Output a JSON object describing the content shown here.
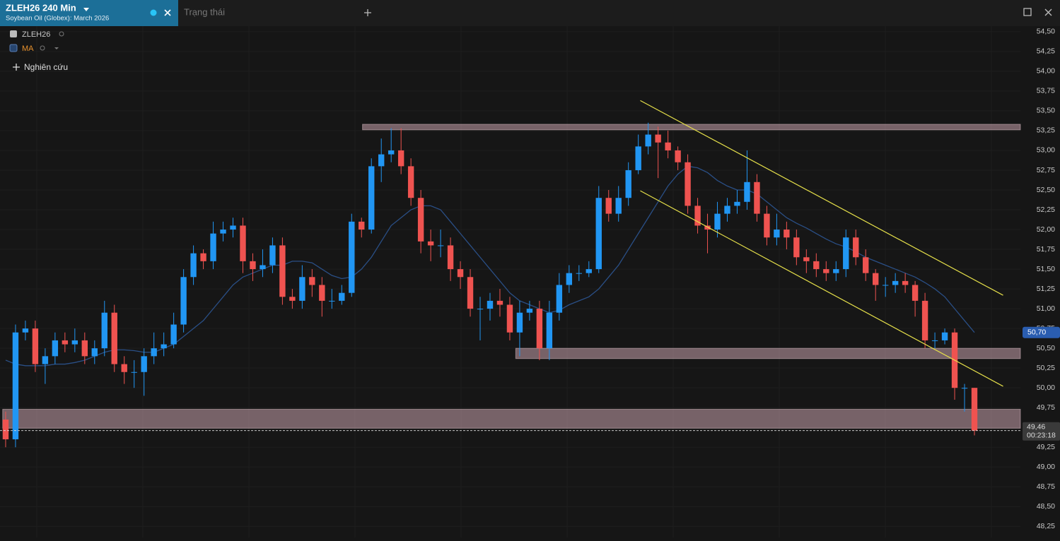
{
  "header": {
    "symbol_title": "ZLEH26 240 Min",
    "symbol_subtitle": "Soybean Oil (Globex): March 2026",
    "tab": "Trạng thái"
  },
  "legend": {
    "items": [
      "ZLEH26",
      "MA"
    ],
    "add_study": "Nghiên cứu"
  },
  "chart_data": {
    "type": "candlestick",
    "xlim": [
      -0.57,
      102.65
    ],
    "ylim": [
      48.11,
      54.57
    ],
    "yticks": [
      {
        "value": 54.5,
        "label": "54,50"
      },
      {
        "value": 54.25,
        "label": "54,25"
      },
      {
        "value": 54,
        "label": "54,00"
      },
      {
        "value": 53.75,
        "label": "53,75"
      },
      {
        "value": 53.5,
        "label": "53,50"
      },
      {
        "value": 53.25,
        "label": "53,25"
      },
      {
        "value": 53,
        "label": "53,00"
      },
      {
        "value": 52.75,
        "label": "52,75"
      },
      {
        "value": 52.5,
        "label": "52,50"
      },
      {
        "value": 52.25,
        "label": "52,25"
      },
      {
        "value": 52,
        "label": "52,00"
      },
      {
        "value": 51.75,
        "label": "51,75"
      },
      {
        "value": 51.5,
        "label": "51,50"
      },
      {
        "value": 51.25,
        "label": "51,25"
      },
      {
        "value": 51,
        "label": "51,00"
      },
      {
        "value": 50.75,
        "label": "50,75"
      },
      {
        "value": 50.5,
        "label": "50,50"
      },
      {
        "value": 50.25,
        "label": "50,25"
      },
      {
        "value": 50,
        "label": "50,00"
      },
      {
        "value": 49.75,
        "label": "49,75"
      },
      {
        "value": 49.5,
        "label": "49,50"
      },
      {
        "value": 49.25,
        "label": "49,25"
      },
      {
        "value": 49,
        "label": "49,00"
      },
      {
        "value": 48.75,
        "label": "48,75"
      },
      {
        "value": 48.5,
        "label": "48,50"
      },
      {
        "value": 48.25,
        "label": "48,25"
      }
    ],
    "grid": true,
    "up_color": "#2196f3",
    "down_color": "#ef5350",
    "open": [
      49.6,
      49.35,
      50.7,
      50.75,
      50.3,
      50.4,
      50.6,
      50.55,
      50.6,
      50.4,
      50.5,
      50.95,
      50.3,
      50.2,
      50.2,
      50.4,
      50.5,
      50.55,
      50.8,
      51.4,
      51.7,
      51.6,
      51.95,
      52,
      52.05,
      51.6,
      51.5,
      51.55,
      51.8,
      51.15,
      51.1,
      51.4,
      51.3,
      51.1,
      51.1,
      51.2,
      52.1,
      52,
      52.8,
      52.95,
      53,
      52.8,
      52.4,
      51.85,
      51.8,
      51.8,
      51.5,
      51.4,
      51,
      51,
      51.1,
      51.05,
      50.7,
      50.95,
      51,
      50.5,
      50.95,
      51.3,
      51.45,
      51.45,
      51.5,
      52.4,
      52.2,
      52.4,
      52.75,
      53.05,
      53.2,
      53.1,
      53,
      52.85,
      52.3,
      52.05,
      52,
      52.2,
      52.3,
      52.35,
      52.6,
      52.2,
      51.9,
      52,
      51.9,
      51.65,
      51.6,
      51.5,
      51.45,
      51.5,
      51.9,
      51.65,
      51.45,
      51.3,
      51.3,
      51.35,
      51.3,
      51.1,
      50.6,
      50.6,
      50.7,
      50,
      50
    ],
    "high": [
      49.7,
      50.8,
      50.85,
      50.85,
      50.5,
      50.7,
      50.7,
      50.75,
      50.7,
      50.6,
      51.1,
      51.05,
      50.4,
      50.35,
      50.5,
      50.7,
      50.7,
      50.95,
      51.5,
      51.8,
      51.75,
      52.1,
      52.1,
      52.15,
      52.15,
      51.7,
      51.75,
      51.9,
      51.9,
      51.25,
      51.55,
      51.5,
      51.4,
      51.25,
      51.3,
      52.2,
      52.15,
      52.9,
      53.15,
      53.28,
      53.28,
      52.9,
      52.5,
      52,
      52,
      51.9,
      51.6,
      51.5,
      51.15,
      51.2,
      51.25,
      51.15,
      51.1,
      51.1,
      51.1,
      51.1,
      51.45,
      51.55,
      51.55,
      51.6,
      52.55,
      52.5,
      52.55,
      52.85,
      53.2,
      53.35,
      53.3,
      53.25,
      53.05,
      52.95,
      52.4,
      52.2,
      52.35,
      52.4,
      52.5,
      53,
      52.7,
      52.3,
      52.2,
      52.1,
      52,
      51.75,
      51.7,
      51.6,
      51.6,
      52,
      52,
      51.75,
      51.5,
      51.4,
      51.45,
      51.45,
      51.35,
      51.2,
      50.7,
      50.75,
      50.75,
      50.05,
      50
    ],
    "low": [
      49.25,
      49.25,
      50.6,
      50.2,
      50.05,
      50.3,
      50.45,
      50.45,
      50.3,
      50.3,
      50.4,
      50.2,
      50.05,
      50,
      49.9,
      50.3,
      50.4,
      50.5,
      50.7,
      51.3,
      51.5,
      51.5,
      51.85,
      51.9,
      51.45,
      51.35,
      51.4,
      51.45,
      51.05,
      51,
      51,
      51.15,
      50.9,
      51,
      51.05,
      51.15,
      51.9,
      51.95,
      52.6,
      52.85,
      52.7,
      52.3,
      51.7,
      51.6,
      51.65,
      51.35,
      51.25,
      50.9,
      50.6,
      50.85,
      50.9,
      50.6,
      50.4,
      50.85,
      50.35,
      50.35,
      50.85,
      51.2,
      51.35,
      51.4,
      51.45,
      52.1,
      52.1,
      52.3,
      52.7,
      52.95,
      52.65,
      52.9,
      52.75,
      52.2,
      51.95,
      51.7,
      51.9,
      52.1,
      52.2,
      52.25,
      52.1,
      51.8,
      51.8,
      51.75,
      51.55,
      51.45,
      51.4,
      51.35,
      51.35,
      51.4,
      51.55,
      51.35,
      51.1,
      51.15,
      51.2,
      51.2,
      50.9,
      50.5,
      50.5,
      50.55,
      49.85,
      49.7,
      49.4
    ],
    "close": [
      49.35,
      50.7,
      50.75,
      50.3,
      50.4,
      50.6,
      50.55,
      50.6,
      50.4,
      50.5,
      50.95,
      50.3,
      50.2,
      50.2,
      50.4,
      50.5,
      50.55,
      50.8,
      51.4,
      51.7,
      51.6,
      51.95,
      52,
      52.05,
      51.6,
      51.5,
      51.55,
      51.8,
      51.15,
      51.1,
      51.4,
      51.3,
      51.1,
      51.1,
      51.2,
      52.1,
      52,
      52.8,
      52.95,
      53,
      52.8,
      52.4,
      51.85,
      51.8,
      51.8,
      51.5,
      51.4,
      51,
      51,
      51.1,
      51.05,
      50.7,
      50.95,
      51,
      50.5,
      50.95,
      51.3,
      51.45,
      51.45,
      51.5,
      52.4,
      52.2,
      52.4,
      52.75,
      53.05,
      53.2,
      53.1,
      53,
      52.85,
      52.3,
      52.05,
      52,
      52.2,
      52.3,
      52.35,
      52.6,
      52.2,
      51.9,
      52,
      51.9,
      51.65,
      51.6,
      51.5,
      51.45,
      51.5,
      51.9,
      51.65,
      51.45,
      51.3,
      51.3,
      51.35,
      51.3,
      51.1,
      50.6,
      50.6,
      50.7,
      50,
      50,
      49.46
    ],
    "ma": {
      "color": "#2a4f86",
      "values": [
        50.35,
        50.3,
        50.28,
        50.28,
        50.28,
        50.3,
        50.3,
        50.32,
        50.35,
        50.4,
        50.45,
        50.48,
        50.48,
        50.47,
        50.45,
        50.45,
        50.5,
        50.55,
        50.65,
        50.75,
        50.85,
        51,
        51.15,
        51.3,
        51.4,
        51.45,
        51.5,
        51.55,
        51.55,
        51.6,
        51.6,
        51.58,
        51.5,
        51.42,
        51.38,
        51.4,
        51.5,
        51.65,
        51.85,
        52.05,
        52.15,
        52.25,
        52.3,
        52.3,
        52.25,
        52.1,
        51.95,
        51.8,
        51.65,
        51.5,
        51.35,
        51.2,
        51.1,
        51.05,
        51,
        50.95,
        50.98,
        51.05,
        51.1,
        51.15,
        51.25,
        51.4,
        51.55,
        51.75,
        51.95,
        52.15,
        52.35,
        52.55,
        52.7,
        52.8,
        52.78,
        52.72,
        52.62,
        52.55,
        52.5,
        52.5,
        52.45,
        52.35,
        52.25,
        52.15,
        52.08,
        52.02,
        51.95,
        51.88,
        51.82,
        51.78,
        51.72,
        51.65,
        51.6,
        51.55,
        51.5,
        51.45,
        51.4,
        51.33,
        51.25,
        51.15,
        51,
        50.85,
        50.7
      ]
    },
    "zones": [
      {
        "y": [
          53.26,
          53.33
        ],
        "x_start": 36.1
      },
      {
        "y": [
          50.37,
          50.5
        ],
        "x_start": 51.6
      },
      {
        "y": [
          49.49,
          49.73
        ],
        "x_start": -0.3
      }
    ],
    "zone_color": "#c8a2ad",
    "trendlines": [
      {
        "x": [
          64.2,
          100.9
        ],
        "y": [
          53.63,
          51.17
        ]
      },
      {
        "x": [
          64.2,
          100.9
        ],
        "y": [
          52.49,
          50.02
        ]
      }
    ],
    "trendline_color": "#e6e04a",
    "last_labels": [
      {
        "value": 50.7,
        "label": "50,70",
        "color": "#2a5db0"
      },
      {
        "value": 49.46,
        "label": "49,46",
        "sub": "00:23:18",
        "color": "#3a3a3a"
      }
    ]
  }
}
